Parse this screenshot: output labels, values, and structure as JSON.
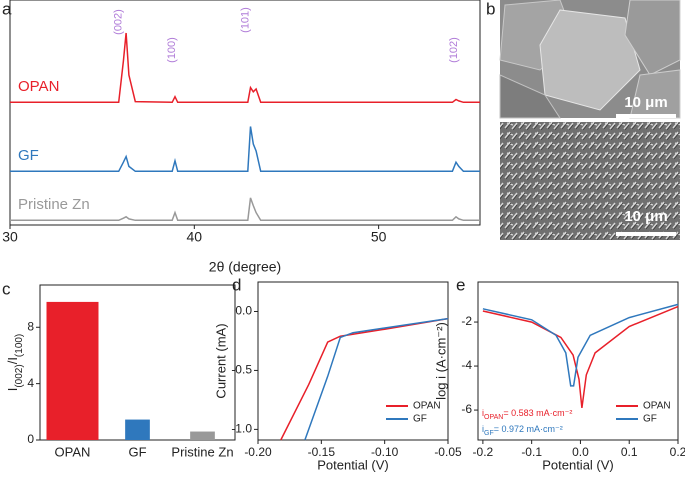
{
  "chart_data": [
    {
      "type": "line",
      "panel": "a",
      "xlabel": "2θ (degree)",
      "xlim": [
        30,
        55.5
      ],
      "xticks": [
        30,
        40,
        50
      ],
      "x": [
        30,
        35.9,
        36.15,
        36.3,
        36.45,
        36.8,
        38.8,
        38.95,
        39.1,
        42.9,
        43.05,
        43.2,
        43.35,
        43.6,
        54.0,
        54.2,
        54.35,
        54.6,
        55.5
      ],
      "series": [
        {
          "name": "OPAN",
          "color": "#e8202a",
          "values": [
            1,
            1,
            60,
            100,
            40,
            2,
            1,
            9,
            1,
            1,
            22,
            16,
            20,
            1,
            1,
            5,
            3,
            1,
            1
          ]
        },
        {
          "name": "GF",
          "color": "#2f78bd",
          "values": [
            1,
            1,
            14,
            22,
            8,
            1,
            1,
            16,
            1,
            1,
            65,
            40,
            30,
            1,
            1,
            14,
            8,
            1,
            1
          ]
        },
        {
          "name": "Pristine Zn",
          "color": "#999999",
          "values": [
            1,
            1,
            4,
            6,
            3,
            1,
            1,
            12,
            1,
            1,
            33,
            22,
            12,
            1,
            1,
            6,
            3,
            1,
            1
          ]
        }
      ],
      "annotation_color": "#b07cd8",
      "annotations": [
        {
          "text": "(002)",
          "x": 36.1
        },
        {
          "text": "(100)",
          "x": 39
        },
        {
          "text": "(101)",
          "x": 43
        },
        {
          "text": "(102)",
          "x": 54.3
        }
      ]
    },
    {
      "type": "bar",
      "panel": "c",
      "ylabel_parts": [
        "I",
        "(002)",
        "/I",
        "(100)"
      ],
      "categories": [
        "OPAN",
        "GF",
        "Pristine Zn"
      ],
      "colors": [
        "#e8202a",
        "#2f78bd",
        "#999999"
      ],
      "values": [
        9.8,
        1.45,
        0.6
      ],
      "ylim": [
        0,
        11
      ],
      "yticks": [
        0,
        4,
        8
      ]
    },
    {
      "type": "line",
      "panel": "d",
      "xlabel": "Potential (V)",
      "ylabel": "Current (mA)",
      "xlim": [
        -0.2,
        -0.05
      ],
      "ylim": [
        -1.09,
        0.25
      ],
      "xticks": [
        {
          "value": -0.2,
          "label": "-0.20"
        },
        {
          "value": -0.15,
          "label": "-0.15"
        },
        {
          "value": -0.1,
          "label": "-0.10"
        },
        {
          "value": -0.05,
          "label": "-0.05"
        }
      ],
      "yticks": [
        {
          "value": -1,
          "label": "-1.0"
        },
        -0.5,
        {
          "value": 0,
          "label": "0.0"
        }
      ],
      "legend": "lower right",
      "series": [
        {
          "name": "OPAN",
          "color": "#e8202a",
          "x": [
            -0.182,
            -0.16,
            -0.145,
            -0.135,
            -0.1,
            -0.05
          ],
          "values": [
            -1.09,
            -0.62,
            -0.26,
            -0.21,
            -0.15,
            -0.06
          ]
        },
        {
          "name": "GF",
          "color": "#2f78bd",
          "x": [
            -0.163,
            -0.145,
            -0.135,
            -0.125,
            -0.1,
            -0.05
          ],
          "values": [
            -1.09,
            -0.55,
            -0.22,
            -0.18,
            -0.14,
            -0.06
          ]
        }
      ]
    },
    {
      "type": "line",
      "panel": "e",
      "xlabel": "Potential (V)",
      "ylabel": "log i (A·cm⁻²)",
      "xlim": [
        -0.21,
        0.2
      ],
      "ylim": [
        -7.36,
        -0.18
      ],
      "xticks": [
        -0.2,
        -0.1,
        {
          "value": 0,
          "label": "0.0"
        },
        0.1,
        0.2
      ],
      "yticks": [
        -6,
        -4,
        -2
      ],
      "legend": "lower right",
      "series": [
        {
          "name": "OPAN",
          "color": "#e8202a",
          "x": [
            -0.2,
            -0.1,
            -0.04,
            -0.015,
            -0.003,
            0.003,
            0.012,
            0.03,
            0.1,
            0.2
          ],
          "values": [
            -1.5,
            -2.0,
            -2.7,
            -3.5,
            -4.6,
            -5.9,
            -4.4,
            -3.4,
            -2.2,
            -1.3
          ]
        },
        {
          "name": "GF",
          "color": "#2f78bd",
          "x": [
            -0.2,
            -0.1,
            -0.05,
            -0.03,
            -0.02,
            -0.014,
            -0.005,
            0.02,
            0.1,
            0.2
          ],
          "values": [
            -1.4,
            -1.9,
            -2.6,
            -3.4,
            -4.9,
            -4.9,
            -3.6,
            -2.6,
            -1.8,
            -1.2
          ]
        }
      ],
      "annotations": [
        {
          "symbol": "i",
          "subscript": "OPAN",
          "text": "= 0.583 mA·cm⁻²",
          "color": "#e8202a"
        },
        {
          "symbol": "i",
          "subscript": "GF",
          "text": "= 0.972 mA·cm⁻²",
          "color": "#2f78bd"
        }
      ]
    }
  ],
  "panel_b": {
    "label": "b",
    "scale_bars": [
      "10 μm",
      "10 μm"
    ]
  }
}
